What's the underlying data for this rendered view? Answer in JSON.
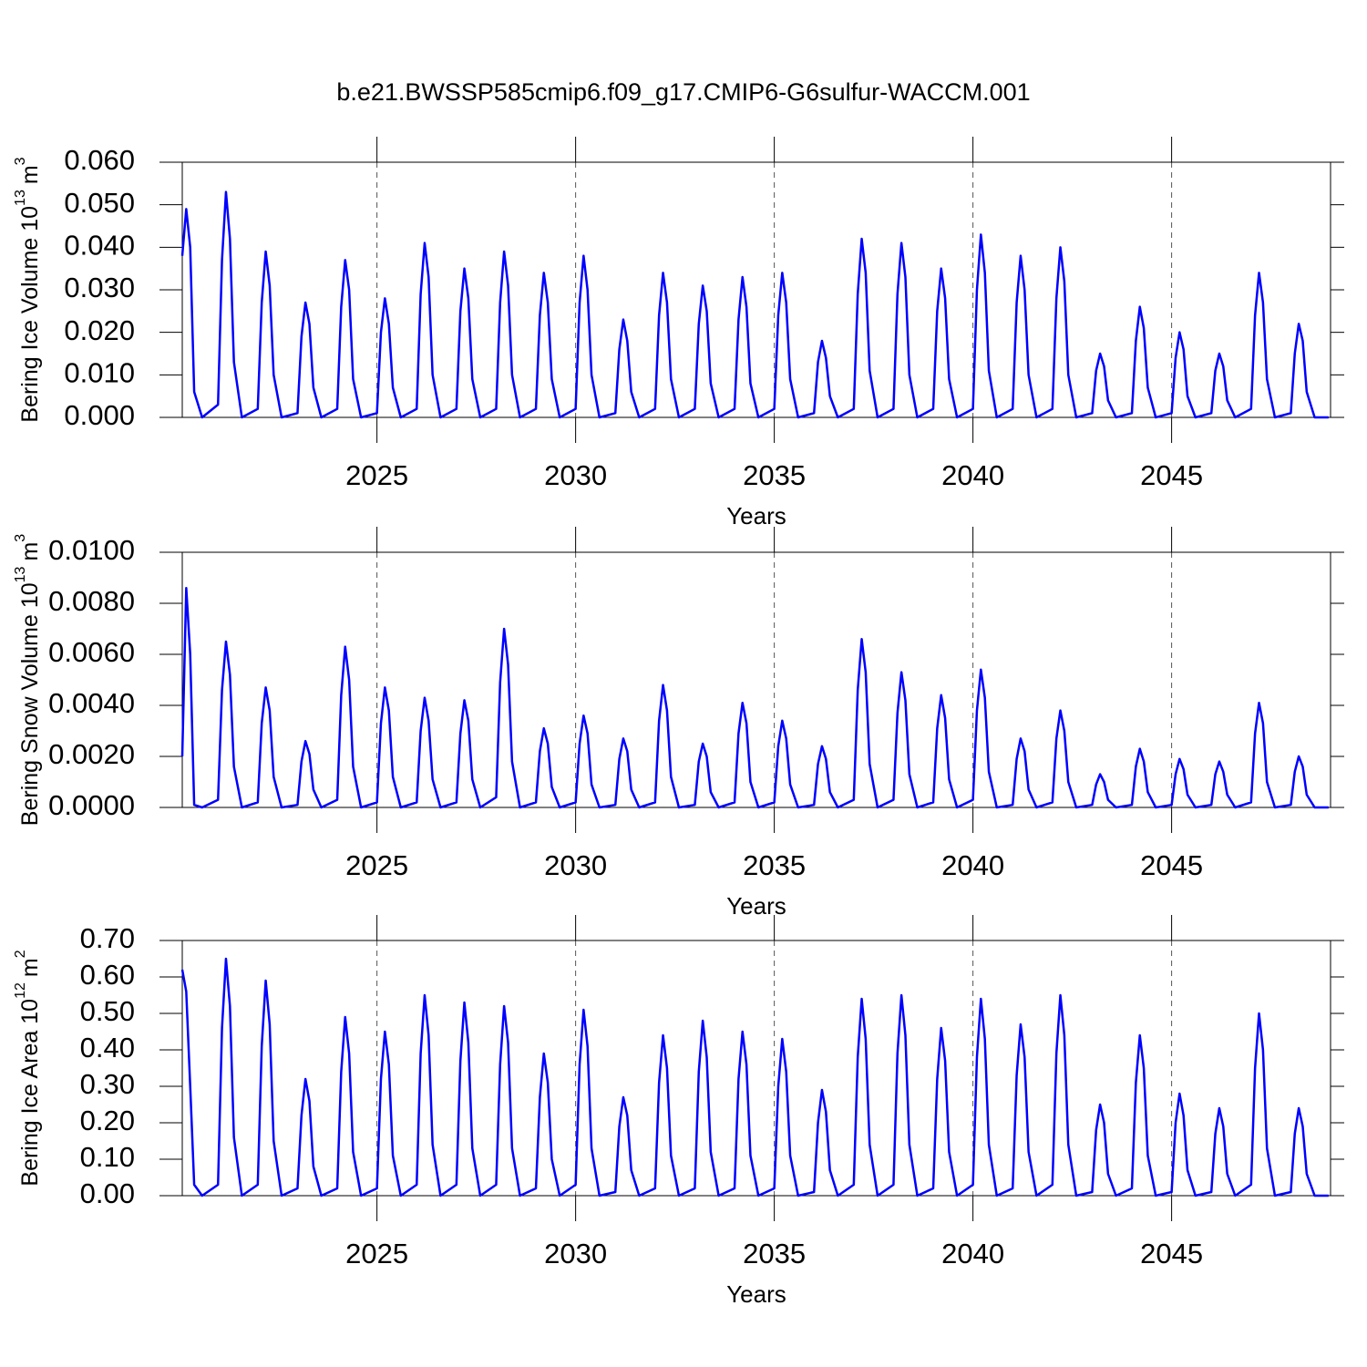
{
  "chart_data": [
    {
      "type": "line",
      "title": "b.e21.BWSSP585cmip6.f09_g17.CMIP6-G6sulfur-WACCM.001",
      "xlabel": "Years",
      "ylabel": {
        "text": "Bering Ice Volume 10",
        "exp": "13",
        "unit": "m",
        "unit_exp": "3"
      },
      "color": "#0000ff",
      "xlim": [
        2020.1,
        2049
      ],
      "xticks": [
        2025,
        2030,
        2035,
        2040,
        2045
      ],
      "grid": true,
      "ylim": [
        0,
        0.06
      ],
      "yticks": [
        {
          "value": 0,
          "label": "0.000"
        },
        {
          "value": 0.01,
          "label": "0.010"
        },
        {
          "value": 0.02,
          "label": "0.020"
        },
        {
          "value": 0.03,
          "label": "0.030"
        },
        {
          "value": 0.04,
          "label": "0.040"
        },
        {
          "value": 0.05,
          "label": "0.050"
        },
        {
          "value": 0.06,
          "label": "0.060"
        }
      ],
      "x": [
        2020.1,
        2020.2,
        2020.3,
        2020.4,
        2020.6,
        2021,
        2021.1,
        2021.2,
        2021.3,
        2021.4,
        2021.6,
        2022,
        2022.1,
        2022.2,
        2022.3,
        2022.4,
        2022.6,
        2023,
        2023.1,
        2023.2,
        2023.3,
        2023.4,
        2023.6,
        2024,
        2024.1,
        2024.2,
        2024.3,
        2024.4,
        2024.6,
        2025,
        2025.1,
        2025.2,
        2025.3,
        2025.4,
        2025.6,
        2026,
        2026.1,
        2026.2,
        2026.3,
        2026.4,
        2026.6,
        2027,
        2027.1,
        2027.2,
        2027.3,
        2027.4,
        2027.6,
        2028,
        2028.1,
        2028.2,
        2028.3,
        2028.4,
        2028.6,
        2029,
        2029.1,
        2029.2,
        2029.3,
        2029.4,
        2029.6,
        2030,
        2030.1,
        2030.2,
        2030.3,
        2030.4,
        2030.6,
        2031,
        2031.1,
        2031.2,
        2031.3,
        2031.4,
        2031.6,
        2032,
        2032.1,
        2032.2,
        2032.3,
        2032.4,
        2032.6,
        2033,
        2033.1,
        2033.2,
        2033.3,
        2033.4,
        2033.6,
        2034,
        2034.1,
        2034.2,
        2034.3,
        2034.4,
        2034.6,
        2035,
        2035.1,
        2035.2,
        2035.3,
        2035.4,
        2035.6,
        2036,
        2036.1,
        2036.2,
        2036.3,
        2036.4,
        2036.6,
        2037,
        2037.1,
        2037.2,
        2037.3,
        2037.4,
        2037.6,
        2038,
        2038.1,
        2038.2,
        2038.3,
        2038.4,
        2038.6,
        2039,
        2039.1,
        2039.2,
        2039.3,
        2039.4,
        2039.6,
        2040,
        2040.1,
        2040.2,
        2040.3,
        2040.4,
        2040.6,
        2041,
        2041.1,
        2041.2,
        2041.3,
        2041.4,
        2041.6,
        2042,
        2042.1,
        2042.2,
        2042.3,
        2042.4,
        2042.6,
        2043,
        2043.1,
        2043.2,
        2043.3,
        2043.4,
        2043.6,
        2044,
        2044.1,
        2044.2,
        2044.3,
        2044.4,
        2044.6,
        2045,
        2045.1,
        2045.2,
        2045.3,
        2045.4,
        2045.6,
        2046,
        2046.1,
        2046.2,
        2046.3,
        2046.4,
        2046.6,
        2047,
        2047.1,
        2047.2,
        2047.3,
        2047.4,
        2047.6,
        2048,
        2048.1,
        2048.2,
        2048.3,
        2048.4,
        2048.6,
        2048.95
      ],
      "values": [
        0.038,
        0.049,
        0.04,
        0.006,
        0,
        0.003,
        0.037,
        0.053,
        0.042,
        0.013,
        0,
        0.002,
        0.027,
        0.039,
        0.031,
        0.01,
        0,
        0.001,
        0.019,
        0.027,
        0.022,
        0.007,
        0,
        0.002,
        0.026,
        0.037,
        0.03,
        0.009,
        0,
        0.001,
        0.02,
        0.028,
        0.022,
        0.007,
        0,
        0.002,
        0.029,
        0.041,
        0.033,
        0.01,
        0,
        0.002,
        0.025,
        0.035,
        0.028,
        0.009,
        0,
        0.002,
        0.027,
        0.039,
        0.031,
        0.01,
        0,
        0.002,
        0.024,
        0.034,
        0.027,
        0.009,
        0,
        0.002,
        0.027,
        0.038,
        0.03,
        0.01,
        0,
        0.001,
        0.016,
        0.023,
        0.018,
        0.006,
        0,
        0.002,
        0.024,
        0.034,
        0.027,
        0.009,
        0,
        0.002,
        0.022,
        0.031,
        0.025,
        0.008,
        0,
        0.002,
        0.023,
        0.033,
        0.026,
        0.008,
        0,
        0.002,
        0.024,
        0.034,
        0.027,
        0.009,
        0,
        0.001,
        0.013,
        0.018,
        0.014,
        0.005,
        0,
        0.002,
        0.029,
        0.042,
        0.034,
        0.011,
        0,
        0.002,
        0.029,
        0.041,
        0.033,
        0.01,
        0,
        0.002,
        0.025,
        0.035,
        0.028,
        0.009,
        0,
        0.002,
        0.03,
        0.043,
        0.034,
        0.011,
        0,
        0.002,
        0.027,
        0.038,
        0.03,
        0.01,
        0,
        0.002,
        0.028,
        0.04,
        0.032,
        0.01,
        0,
        0.001,
        0.011,
        0.015,
        0.012,
        0.004,
        0,
        0.001,
        0.018,
        0.026,
        0.021,
        0.007,
        0,
        0.001,
        0.014,
        0.02,
        0.016,
        0.005,
        0,
        0.001,
        0.011,
        0.015,
        0.012,
        0.004,
        0,
        0.002,
        0.024,
        0.034,
        0.027,
        0.009,
        0,
        0.001,
        0.015,
        0.022,
        0.018,
        0.006,
        0,
        0
      ]
    },
    {
      "type": "line",
      "xlabel": "Years",
      "ylabel": {
        "text": "Bering Snow Volume 10",
        "exp": "13",
        "unit": "m",
        "unit_exp": "3"
      },
      "color": "#0000ff",
      "xlim": [
        2020.1,
        2049
      ],
      "xticks": [
        2025,
        2030,
        2035,
        2040,
        2045
      ],
      "grid": true,
      "ylim": [
        0,
        0.01
      ],
      "yticks": [
        {
          "value": 0,
          "label": "0.0000"
        },
        {
          "value": 0.002,
          "label": "0.0020"
        },
        {
          "value": 0.004,
          "label": "0.0040"
        },
        {
          "value": 0.006,
          "label": "0.0060"
        },
        {
          "value": 0.008,
          "label": "0.0080"
        },
        {
          "value": 0.01,
          "label": "0.0100"
        }
      ],
      "x": [
        2020.1,
        2020.2,
        2020.3,
        2020.4,
        2020.6,
        2021,
        2021.1,
        2021.2,
        2021.3,
        2021.4,
        2021.6,
        2022,
        2022.1,
        2022.2,
        2022.3,
        2022.4,
        2022.6,
        2023,
        2023.1,
        2023.2,
        2023.3,
        2023.4,
        2023.6,
        2024,
        2024.1,
        2024.2,
        2024.3,
        2024.4,
        2024.6,
        2025,
        2025.1,
        2025.2,
        2025.3,
        2025.4,
        2025.6,
        2026,
        2026.1,
        2026.2,
        2026.3,
        2026.4,
        2026.6,
        2027,
        2027.1,
        2027.2,
        2027.3,
        2027.4,
        2027.6,
        2028,
        2028.1,
        2028.2,
        2028.3,
        2028.4,
        2028.6,
        2029,
        2029.1,
        2029.2,
        2029.3,
        2029.4,
        2029.6,
        2030,
        2030.1,
        2030.2,
        2030.3,
        2030.4,
        2030.6,
        2031,
        2031.1,
        2031.2,
        2031.3,
        2031.4,
        2031.6,
        2032,
        2032.1,
        2032.2,
        2032.3,
        2032.4,
        2032.6,
        2033,
        2033.1,
        2033.2,
        2033.3,
        2033.4,
        2033.6,
        2034,
        2034.1,
        2034.2,
        2034.3,
        2034.4,
        2034.6,
        2035,
        2035.1,
        2035.2,
        2035.3,
        2035.4,
        2035.6,
        2036,
        2036.1,
        2036.2,
        2036.3,
        2036.4,
        2036.6,
        2037,
        2037.1,
        2037.2,
        2037.3,
        2037.4,
        2037.6,
        2038,
        2038.1,
        2038.2,
        2038.3,
        2038.4,
        2038.6,
        2039,
        2039.1,
        2039.2,
        2039.3,
        2039.4,
        2039.6,
        2040,
        2040.1,
        2040.2,
        2040.3,
        2040.4,
        2040.6,
        2041,
        2041.1,
        2041.2,
        2041.3,
        2041.4,
        2041.6,
        2042,
        2042.1,
        2042.2,
        2042.3,
        2042.4,
        2042.6,
        2043,
        2043.1,
        2043.2,
        2043.3,
        2043.4,
        2043.6,
        2044,
        2044.1,
        2044.2,
        2044.3,
        2044.4,
        2044.6,
        2045,
        2045.1,
        2045.2,
        2045.3,
        2045.4,
        2045.6,
        2046,
        2046.1,
        2046.2,
        2046.3,
        2046.4,
        2046.6,
        2047,
        2047.1,
        2047.2,
        2047.3,
        2047.4,
        2047.6,
        2048,
        2048.1,
        2048.2,
        2048.3,
        2048.4,
        2048.6,
        2048.95
      ],
      "values": [
        0.002,
        0.0086,
        0.006,
        0.0001,
        0,
        0.0003,
        0.0046,
        0.0065,
        0.0052,
        0.0016,
        0,
        0.0002,
        0.0033,
        0.0047,
        0.0038,
        0.0012,
        0,
        0.0001,
        0.0018,
        0.0026,
        0.0021,
        0.0007,
        0,
        0.0003,
        0.0044,
        0.0063,
        0.005,
        0.0016,
        0,
        0.0002,
        0.0033,
        0.0047,
        0.0038,
        0.0012,
        0,
        0.0002,
        0.003,
        0.0043,
        0.0034,
        0.0011,
        0,
        0.0002,
        0.0029,
        0.0042,
        0.0034,
        0.0011,
        0,
        0.0004,
        0.0049,
        0.007,
        0.0056,
        0.0018,
        0,
        0.0002,
        0.0022,
        0.0031,
        0.0025,
        0.0008,
        0,
        0.0002,
        0.0025,
        0.0036,
        0.0029,
        0.0009,
        0,
        0.0001,
        0.0019,
        0.0027,
        0.0022,
        0.0007,
        0,
        0.0002,
        0.0034,
        0.0048,
        0.0038,
        0.0012,
        0,
        0.0001,
        0.0018,
        0.0025,
        0.002,
        0.0006,
        0,
        0.0002,
        0.0029,
        0.0041,
        0.0033,
        0.001,
        0,
        0.0002,
        0.0024,
        0.0034,
        0.0027,
        0.0009,
        0,
        0.0001,
        0.0017,
        0.0024,
        0.0019,
        0.0006,
        0,
        0.0003,
        0.0046,
        0.0066,
        0.0053,
        0.0017,
        0,
        0.0003,
        0.0037,
        0.0053,
        0.0042,
        0.0013,
        0,
        0.0002,
        0.0031,
        0.0044,
        0.0035,
        0.0011,
        0,
        0.0003,
        0.0038,
        0.0054,
        0.0043,
        0.0014,
        0,
        0.0001,
        0.0019,
        0.0027,
        0.0022,
        0.0007,
        0,
        0.0002,
        0.0027,
        0.0038,
        0.003,
        0.001,
        0,
        0.0001,
        0.0009,
        0.0013,
        0.001,
        0.0003,
        0,
        0.0001,
        0.0016,
        0.0023,
        0.0018,
        0.0006,
        0,
        0.0001,
        0.0013,
        0.0019,
        0.0015,
        0.0005,
        0,
        0.0001,
        0.0013,
        0.0018,
        0.0014,
        0.0005,
        0,
        0.0002,
        0.0029,
        0.0041,
        0.0033,
        0.001,
        0,
        0.0001,
        0.0014,
        0.002,
        0.0016,
        0.0005,
        0,
        0
      ]
    },
    {
      "type": "line",
      "xlabel": "Years",
      "ylabel": {
        "text": "Bering Ice Area 10",
        "exp": "12",
        "unit": "m",
        "unit_exp": "2"
      },
      "color": "#0000ff",
      "xlim": [
        2020.1,
        2049
      ],
      "xticks": [
        2025,
        2030,
        2035,
        2040,
        2045
      ],
      "grid": true,
      "ylim": [
        0,
        0.7
      ],
      "yticks": [
        {
          "value": 0,
          "label": "0.00"
        },
        {
          "value": 0.1,
          "label": "0.10"
        },
        {
          "value": 0.2,
          "label": "0.20"
        },
        {
          "value": 0.3,
          "label": "0.30"
        },
        {
          "value": 0.4,
          "label": "0.40"
        },
        {
          "value": 0.5,
          "label": "0.50"
        },
        {
          "value": 0.6,
          "label": "0.60"
        },
        {
          "value": 0.7,
          "label": "0.70"
        }
      ],
      "x": [
        2020.1,
        2020.2,
        2020.3,
        2020.4,
        2020.6,
        2021,
        2021.1,
        2021.2,
        2021.3,
        2021.4,
        2021.6,
        2022,
        2022.1,
        2022.2,
        2022.3,
        2022.4,
        2022.6,
        2023,
        2023.1,
        2023.2,
        2023.3,
        2023.4,
        2023.6,
        2024,
        2024.1,
        2024.2,
        2024.3,
        2024.4,
        2024.6,
        2025,
        2025.1,
        2025.2,
        2025.3,
        2025.4,
        2025.6,
        2026,
        2026.1,
        2026.2,
        2026.3,
        2026.4,
        2026.6,
        2027,
        2027.1,
        2027.2,
        2027.3,
        2027.4,
        2027.6,
        2028,
        2028.1,
        2028.2,
        2028.3,
        2028.4,
        2028.6,
        2029,
        2029.1,
        2029.2,
        2029.3,
        2029.4,
        2029.6,
        2030,
        2030.1,
        2030.2,
        2030.3,
        2030.4,
        2030.6,
        2031,
        2031.1,
        2031.2,
        2031.3,
        2031.4,
        2031.6,
        2032,
        2032.1,
        2032.2,
        2032.3,
        2032.4,
        2032.6,
        2033,
        2033.1,
        2033.2,
        2033.3,
        2033.4,
        2033.6,
        2034,
        2034.1,
        2034.2,
        2034.3,
        2034.4,
        2034.6,
        2035,
        2035.1,
        2035.2,
        2035.3,
        2035.4,
        2035.6,
        2036,
        2036.1,
        2036.2,
        2036.3,
        2036.4,
        2036.6,
        2037,
        2037.1,
        2037.2,
        2037.3,
        2037.4,
        2037.6,
        2038,
        2038.1,
        2038.2,
        2038.3,
        2038.4,
        2038.6,
        2039,
        2039.1,
        2039.2,
        2039.3,
        2039.4,
        2039.6,
        2040,
        2040.1,
        2040.2,
        2040.3,
        2040.4,
        2040.6,
        2041,
        2041.1,
        2041.2,
        2041.3,
        2041.4,
        2041.6,
        2042,
        2042.1,
        2042.2,
        2042.3,
        2042.4,
        2042.6,
        2043,
        2043.1,
        2043.2,
        2043.3,
        2043.4,
        2043.6,
        2044,
        2044.1,
        2044.2,
        2044.3,
        2044.4,
        2044.6,
        2045,
        2045.1,
        2045.2,
        2045.3,
        2045.4,
        2045.6,
        2046,
        2046.1,
        2046.2,
        2046.3,
        2046.4,
        2046.6,
        2047,
        2047.1,
        2047.2,
        2047.3,
        2047.4,
        2047.6,
        2048,
        2048.1,
        2048.2,
        2048.3,
        2048.4,
        2048.6,
        2048.95
      ],
      "values": [
        0.62,
        0.56,
        0.3,
        0.03,
        0,
        0.03,
        0.46,
        0.65,
        0.52,
        0.16,
        0,
        0.03,
        0.41,
        0.59,
        0.47,
        0.15,
        0,
        0.02,
        0.22,
        0.32,
        0.26,
        0.08,
        0,
        0.02,
        0.34,
        0.49,
        0.39,
        0.12,
        0,
        0.02,
        0.32,
        0.45,
        0.36,
        0.11,
        0,
        0.03,
        0.39,
        0.55,
        0.44,
        0.14,
        0,
        0.03,
        0.37,
        0.53,
        0.42,
        0.13,
        0,
        0.03,
        0.36,
        0.52,
        0.42,
        0.13,
        0,
        0.02,
        0.27,
        0.39,
        0.31,
        0.1,
        0,
        0.03,
        0.36,
        0.51,
        0.41,
        0.13,
        0,
        0.01,
        0.19,
        0.27,
        0.22,
        0.07,
        0,
        0.02,
        0.31,
        0.44,
        0.35,
        0.11,
        0,
        0.02,
        0.34,
        0.48,
        0.38,
        0.12,
        0,
        0.02,
        0.32,
        0.45,
        0.36,
        0.11,
        0,
        0.02,
        0.3,
        0.43,
        0.34,
        0.11,
        0,
        0.01,
        0.2,
        0.29,
        0.23,
        0.07,
        0,
        0.03,
        0.38,
        0.54,
        0.43,
        0.14,
        0,
        0.03,
        0.39,
        0.55,
        0.44,
        0.14,
        0,
        0.02,
        0.32,
        0.46,
        0.37,
        0.12,
        0,
        0.03,
        0.38,
        0.54,
        0.43,
        0.14,
        0,
        0.02,
        0.33,
        0.47,
        0.38,
        0.12,
        0,
        0.03,
        0.39,
        0.55,
        0.44,
        0.14,
        0,
        0.01,
        0.18,
        0.25,
        0.2,
        0.06,
        0,
        0.02,
        0.31,
        0.44,
        0.35,
        0.11,
        0,
        0.01,
        0.2,
        0.28,
        0.22,
        0.07,
        0,
        0.01,
        0.17,
        0.24,
        0.19,
        0.06,
        0,
        0.03,
        0.35,
        0.5,
        0.4,
        0.13,
        0,
        0.01,
        0.17,
        0.24,
        0.19,
        0.06,
        0,
        0
      ]
    }
  ]
}
